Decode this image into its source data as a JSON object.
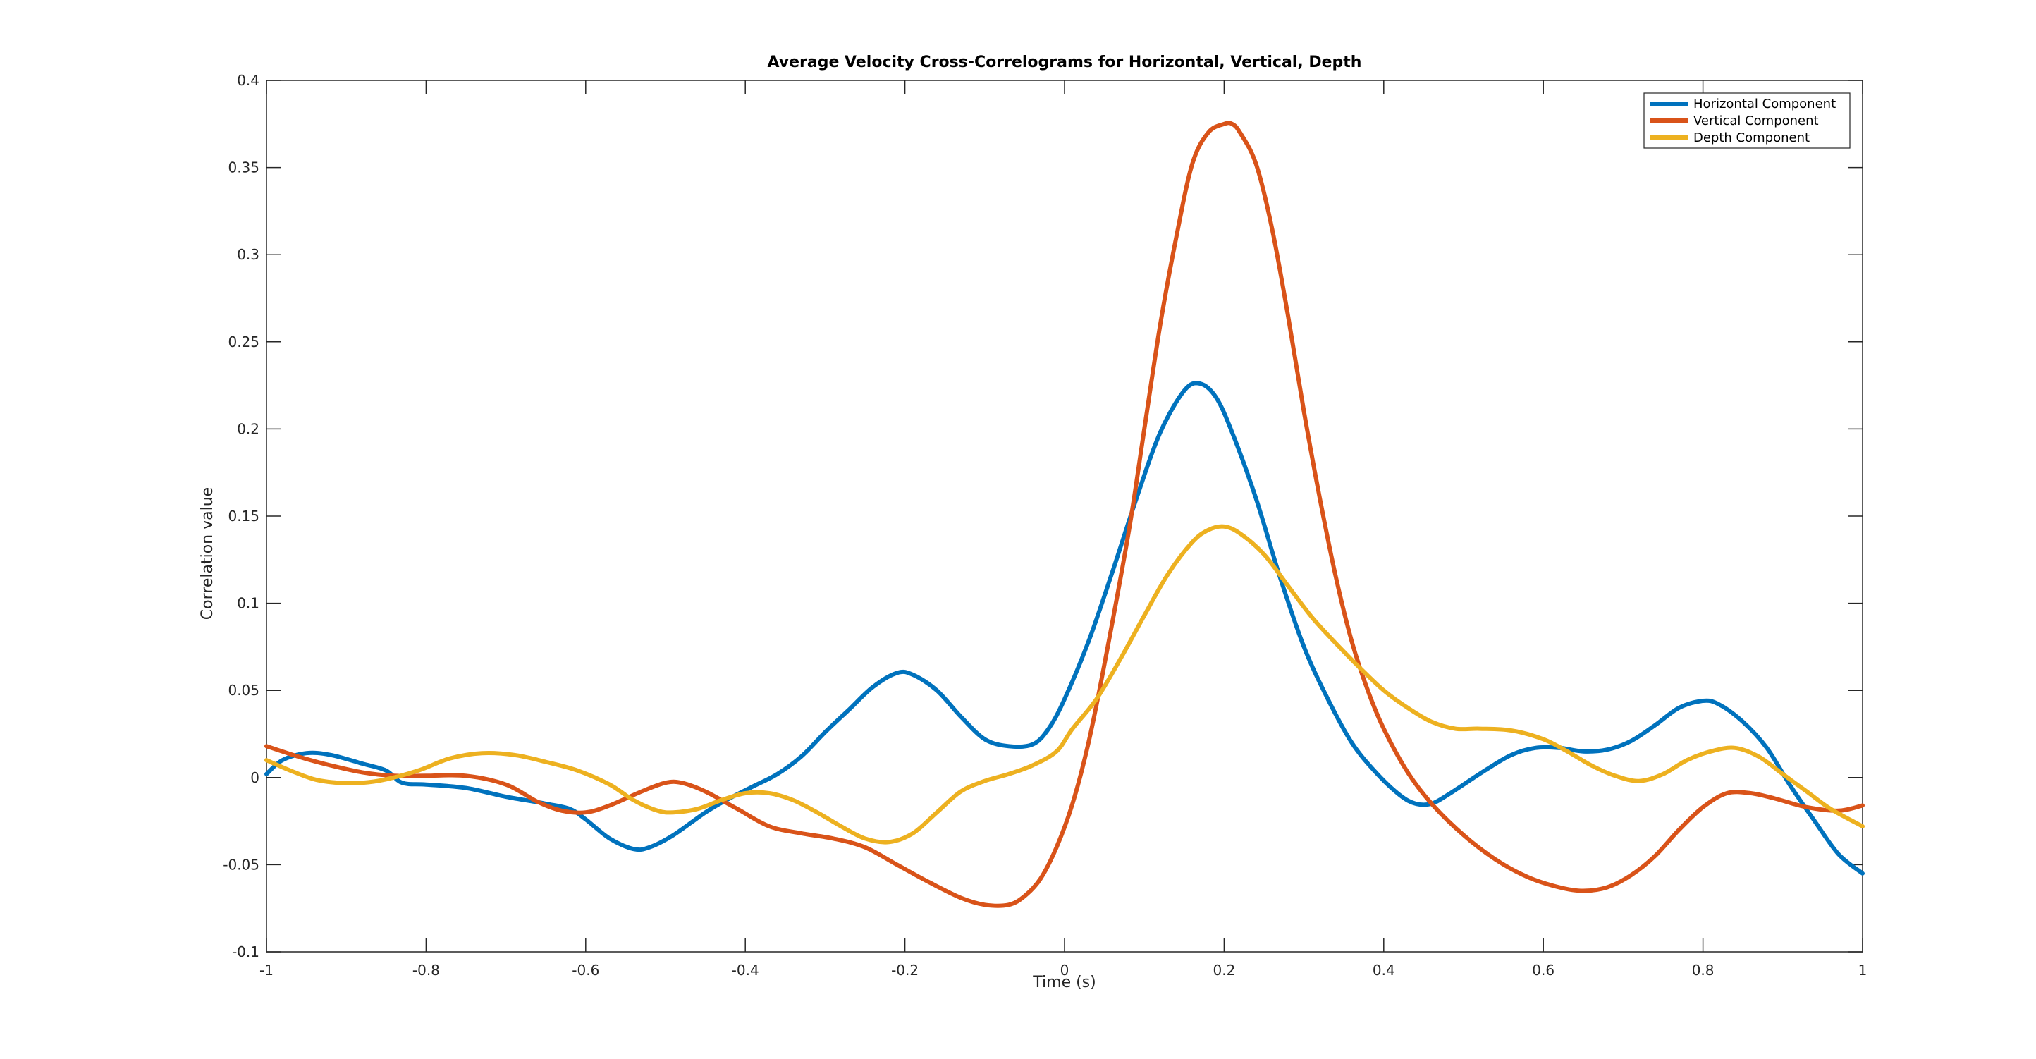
{
  "chart_data": {
    "type": "line",
    "title": "Average Velocity Cross-Correlograms for Horizontal, Vertical, Depth",
    "xlabel": "Time (s)",
    "ylabel": "Correlation value",
    "xlim": [
      -1,
      1
    ],
    "ylim": [
      -0.1,
      0.4
    ],
    "xticks": [
      -1,
      -0.8,
      -0.6,
      -0.4,
      -0.2,
      0,
      0.2,
      0.4,
      0.6,
      0.8,
      1
    ],
    "xtick_labels": [
      "-1",
      "-0.8",
      "-0.6",
      "-0.4",
      "-0.2",
      "0",
      "0.2",
      "0.4",
      "0.6",
      "0.8",
      "1"
    ],
    "yticks": [
      -0.1,
      -0.05,
      0,
      0.05,
      0.1,
      0.15,
      0.2,
      0.25,
      0.3,
      0.35,
      0.4
    ],
    "ytick_labels": [
      "-0.1",
      "-0.05",
      "0",
      "0.05",
      "0.1",
      "0.15",
      "0.2",
      "0.25",
      "0.3",
      "0.35",
      "0.4"
    ],
    "grid": false,
    "legend_position": "top-right",
    "series": [
      {
        "name": "Horizontal Component",
        "color": "#0072BD",
        "points": [
          [
            -1,
            0.002
          ],
          [
            -0.98,
            0.01
          ],
          [
            -0.95,
            0.014
          ],
          [
            -0.92,
            0.013
          ],
          [
            -0.88,
            0.008
          ],
          [
            -0.85,
            0.004
          ],
          [
            -0.83,
            -0.003
          ],
          [
            -0.8,
            -0.004
          ],
          [
            -0.75,
            -0.006
          ],
          [
            -0.7,
            -0.011
          ],
          [
            -0.65,
            -0.015
          ],
          [
            -0.62,
            -0.018
          ],
          [
            -0.6,
            -0.024
          ],
          [
            -0.57,
            -0.035
          ],
          [
            -0.54,
            -0.041
          ],
          [
            -0.52,
            -0.04
          ],
          [
            -0.49,
            -0.033
          ],
          [
            -0.45,
            -0.02
          ],
          [
            -0.42,
            -0.012
          ],
          [
            -0.39,
            -0.005
          ],
          [
            -0.36,
            0.002
          ],
          [
            -0.33,
            0.012
          ],
          [
            -0.3,
            0.026
          ],
          [
            -0.27,
            0.039
          ],
          [
            -0.24,
            0.052
          ],
          [
            -0.21,
            0.06
          ],
          [
            -0.19,
            0.059
          ],
          [
            -0.16,
            0.05
          ],
          [
            -0.13,
            0.035
          ],
          [
            -0.1,
            0.022
          ],
          [
            -0.07,
            0.018
          ],
          [
            -0.04,
            0.019
          ],
          [
            -0.02,
            0.028
          ],
          [
            0,
            0.045
          ],
          [
            0.03,
            0.078
          ],
          [
            0.06,
            0.118
          ],
          [
            0.09,
            0.16
          ],
          [
            0.12,
            0.198
          ],
          [
            0.15,
            0.222
          ],
          [
            0.17,
            0.226
          ],
          [
            0.19,
            0.218
          ],
          [
            0.21,
            0.198
          ],
          [
            0.24,
            0.16
          ],
          [
            0.27,
            0.115
          ],
          [
            0.3,
            0.075
          ],
          [
            0.33,
            0.045
          ],
          [
            0.36,
            0.02
          ],
          [
            0.39,
            0.003
          ],
          [
            0.42,
            -0.01
          ],
          [
            0.44,
            -0.015
          ],
          [
            0.46,
            -0.015
          ],
          [
            0.48,
            -0.01
          ],
          [
            0.5,
            -0.004
          ],
          [
            0.53,
            0.005
          ],
          [
            0.56,
            0.013
          ],
          [
            0.59,
            0.017
          ],
          [
            0.62,
            0.017
          ],
          [
            0.65,
            0.015
          ],
          [
            0.68,
            0.016
          ],
          [
            0.71,
            0.021
          ],
          [
            0.74,
            0.03
          ],
          [
            0.77,
            0.04
          ],
          [
            0.8,
            0.044
          ],
          [
            0.82,
            0.042
          ],
          [
            0.85,
            0.032
          ],
          [
            0.88,
            0.017
          ],
          [
            0.91,
            -0.005
          ],
          [
            0.94,
            -0.025
          ],
          [
            0.97,
            -0.044
          ],
          [
            1,
            -0.055
          ]
        ]
      },
      {
        "name": "Vertical Component",
        "color": "#D95319",
        "points": [
          [
            -1,
            0.018
          ],
          [
            -0.96,
            0.012
          ],
          [
            -0.92,
            0.007
          ],
          [
            -0.88,
            0.003
          ],
          [
            -0.84,
            0.001
          ],
          [
            -0.8,
            0.001
          ],
          [
            -0.75,
            0.001
          ],
          [
            -0.7,
            -0.004
          ],
          [
            -0.66,
            -0.014
          ],
          [
            -0.63,
            -0.019
          ],
          [
            -0.6,
            -0.02
          ],
          [
            -0.57,
            -0.016
          ],
          [
            -0.53,
            -0.008
          ],
          [
            -0.5,
            -0.003
          ],
          [
            -0.48,
            -0.003
          ],
          [
            -0.45,
            -0.008
          ],
          [
            -0.41,
            -0.018
          ],
          [
            -0.37,
            -0.028
          ],
          [
            -0.33,
            -0.032
          ],
          [
            -0.29,
            -0.035
          ],
          [
            -0.25,
            -0.04
          ],
          [
            -0.21,
            -0.05
          ],
          [
            -0.17,
            -0.06
          ],
          [
            -0.13,
            -0.069
          ],
          [
            -0.1,
            -0.073
          ],
          [
            -0.07,
            -0.073
          ],
          [
            -0.05,
            -0.068
          ],
          [
            -0.03,
            -0.058
          ],
          [
            -0.01,
            -0.04
          ],
          [
            0.01,
            -0.015
          ],
          [
            0.03,
            0.02
          ],
          [
            0.05,
            0.065
          ],
          [
            0.08,
            0.14
          ],
          [
            0.1,
            0.2
          ],
          [
            0.12,
            0.26
          ],
          [
            0.14,
            0.31
          ],
          [
            0.16,
            0.352
          ],
          [
            0.18,
            0.37
          ],
          [
            0.2,
            0.375
          ],
          [
            0.21,
            0.375
          ],
          [
            0.22,
            0.37
          ],
          [
            0.24,
            0.352
          ],
          [
            0.26,
            0.315
          ],
          [
            0.28,
            0.265
          ],
          [
            0.3,
            0.21
          ],
          [
            0.32,
            0.16
          ],
          [
            0.34,
            0.115
          ],
          [
            0.36,
            0.078
          ],
          [
            0.38,
            0.05
          ],
          [
            0.4,
            0.028
          ],
          [
            0.43,
            0.003
          ],
          [
            0.46,
            -0.015
          ],
          [
            0.5,
            -0.033
          ],
          [
            0.54,
            -0.047
          ],
          [
            0.58,
            -0.057
          ],
          [
            0.62,
            -0.063
          ],
          [
            0.65,
            -0.065
          ],
          [
            0.68,
            -0.063
          ],
          [
            0.71,
            -0.056
          ],
          [
            0.74,
            -0.045
          ],
          [
            0.77,
            -0.03
          ],
          [
            0.8,
            -0.017
          ],
          [
            0.83,
            -0.009
          ],
          [
            0.86,
            -0.009
          ],
          [
            0.89,
            -0.012
          ],
          [
            0.93,
            -0.017
          ],
          [
            0.97,
            -0.019
          ],
          [
            1,
            -0.016
          ]
        ]
      },
      {
        "name": "Depth Component",
        "color": "#EDB120",
        "points": [
          [
            -1,
            0.01
          ],
          [
            -0.97,
            0.004
          ],
          [
            -0.94,
            -0.001
          ],
          [
            -0.91,
            -0.003
          ],
          [
            -0.88,
            -0.003
          ],
          [
            -0.85,
            -0.001
          ],
          [
            -0.81,
            0.004
          ],
          [
            -0.77,
            0.011
          ],
          [
            -0.73,
            0.014
          ],
          [
            -0.69,
            0.013
          ],
          [
            -0.65,
            0.009
          ],
          [
            -0.61,
            0.004
          ],
          [
            -0.57,
            -0.004
          ],
          [
            -0.54,
            -0.013
          ],
          [
            -0.51,
            -0.019
          ],
          [
            -0.49,
            -0.02
          ],
          [
            -0.46,
            -0.018
          ],
          [
            -0.43,
            -0.013
          ],
          [
            -0.4,
            -0.009
          ],
          [
            -0.37,
            -0.009
          ],
          [
            -0.34,
            -0.013
          ],
          [
            -0.31,
            -0.02
          ],
          [
            -0.28,
            -0.028
          ],
          [
            -0.25,
            -0.035
          ],
          [
            -0.22,
            -0.037
          ],
          [
            -0.19,
            -0.032
          ],
          [
            -0.16,
            -0.02
          ],
          [
            -0.13,
            -0.008
          ],
          [
            -0.1,
            -0.002
          ],
          [
            -0.07,
            0.002
          ],
          [
            -0.04,
            0.007
          ],
          [
            -0.01,
            0.015
          ],
          [
            0.01,
            0.028
          ],
          [
            0.04,
            0.045
          ],
          [
            0.07,
            0.068
          ],
          [
            0.1,
            0.093
          ],
          [
            0.13,
            0.117
          ],
          [
            0.16,
            0.135
          ],
          [
            0.18,
            0.142
          ],
          [
            0.2,
            0.144
          ],
          [
            0.22,
            0.14
          ],
          [
            0.25,
            0.128
          ],
          [
            0.28,
            0.11
          ],
          [
            0.31,
            0.092
          ],
          [
            0.34,
            0.077
          ],
          [
            0.37,
            0.063
          ],
          [
            0.4,
            0.05
          ],
          [
            0.43,
            0.04
          ],
          [
            0.46,
            0.032
          ],
          [
            0.49,
            0.028
          ],
          [
            0.52,
            0.028
          ],
          [
            0.56,
            0.027
          ],
          [
            0.6,
            0.022
          ],
          [
            0.63,
            0.015
          ],
          [
            0.66,
            0.007
          ],
          [
            0.69,
            0.001
          ],
          [
            0.72,
            -0.002
          ],
          [
            0.75,
            0.002
          ],
          [
            0.78,
            0.01
          ],
          [
            0.81,
            0.015
          ],
          [
            0.84,
            0.017
          ],
          [
            0.87,
            0.012
          ],
          [
            0.9,
            0.002
          ],
          [
            0.93,
            -0.008
          ],
          [
            0.96,
            -0.018
          ],
          [
            1,
            -0.028
          ]
        ]
      }
    ]
  }
}
